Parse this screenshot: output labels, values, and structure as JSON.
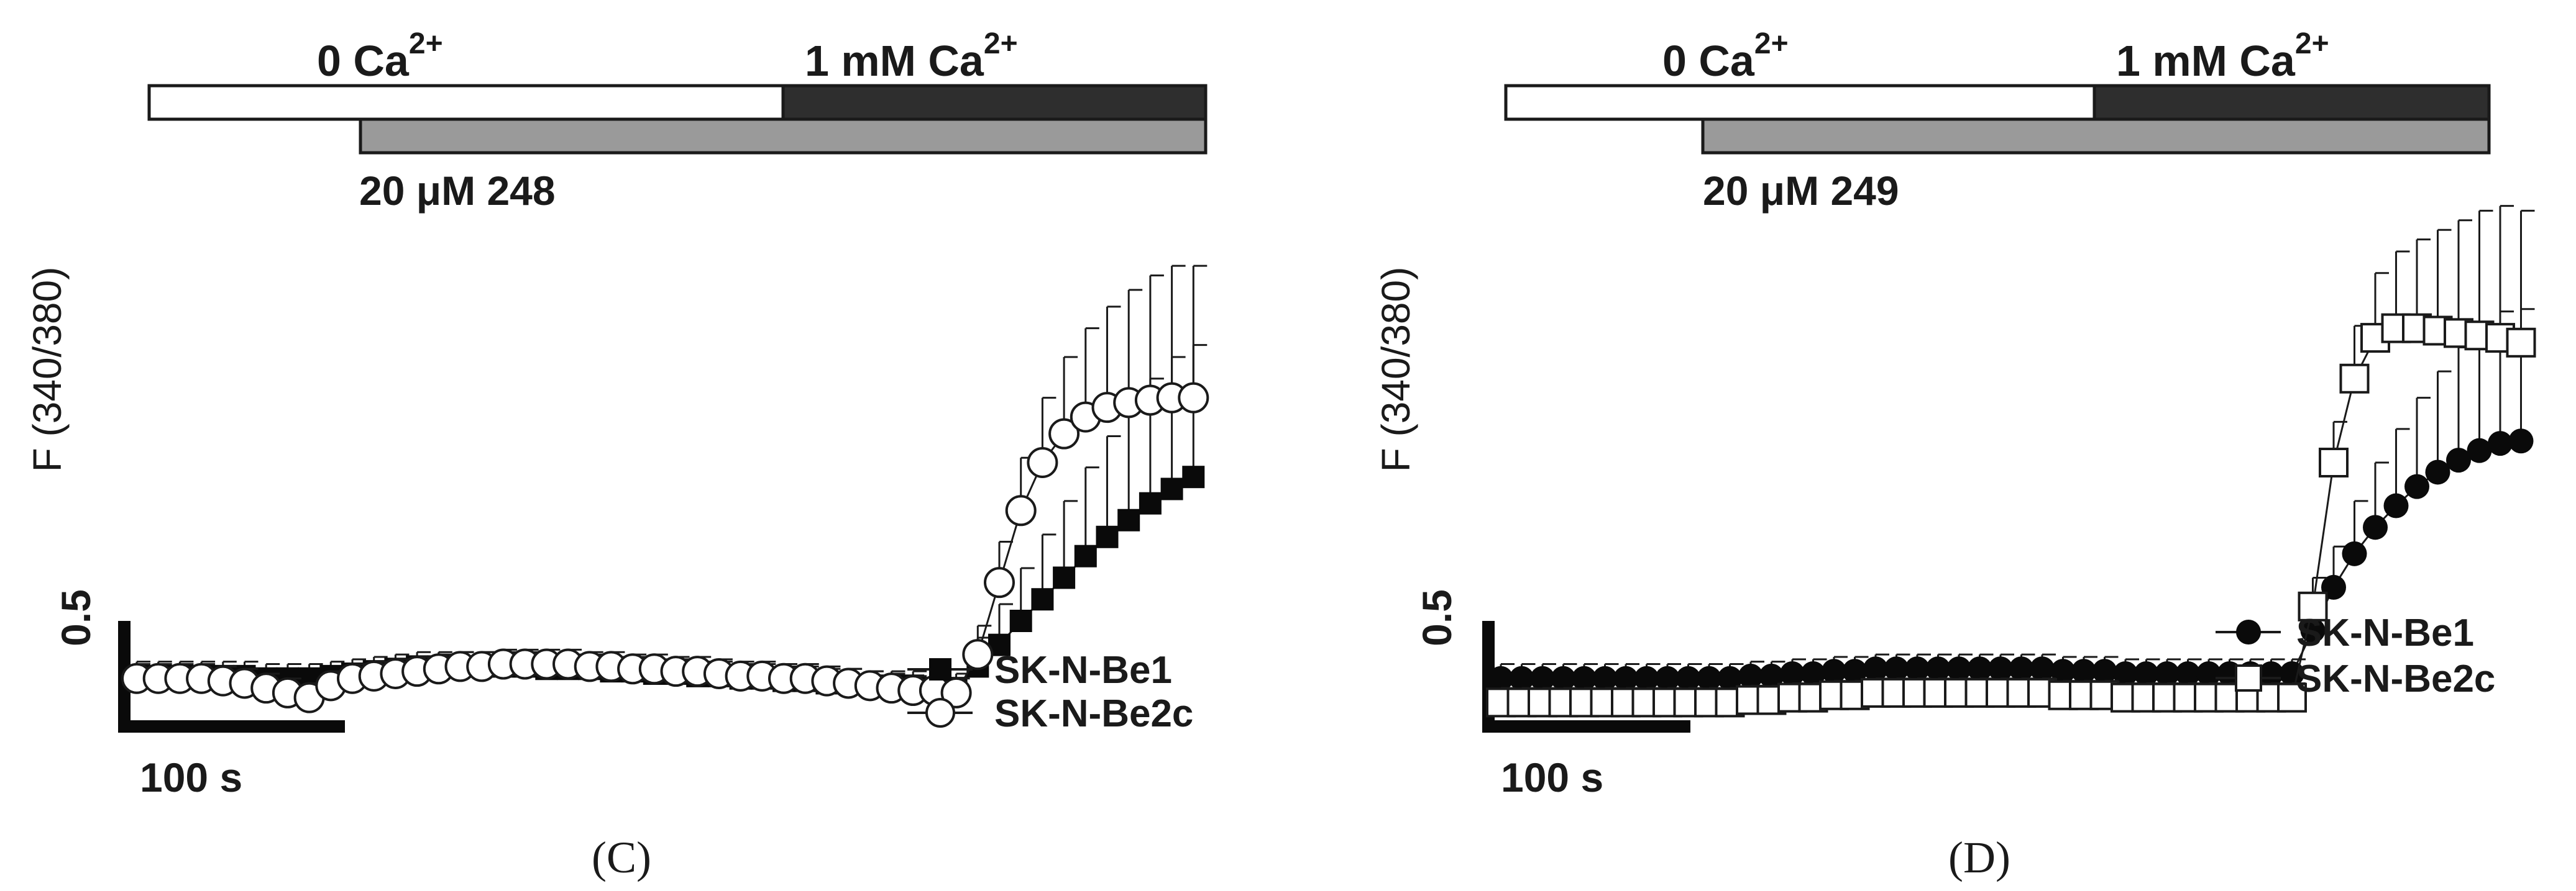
{
  "chart_data": [
    {
      "type": "line",
      "panel_label": "(C)",
      "protocol": {
        "condition1": "0 Ca",
        "condition1_sup": "2+",
        "condition2": "1 mM Ca",
        "condition2_sup": "2+",
        "drug": "20 μM 248"
      },
      "ylabel": "F (340/380)",
      "scale_bar": {
        "y_label": "0.5",
        "y_value": 0.5,
        "x_label": "100 s",
        "x_value": 100
      },
      "xlim": [
        0,
        800
      ],
      "ylim": [
        0,
        2.2
      ],
      "series": [
        {
          "name": "SK-N-Be1",
          "marker": "filled-square",
          "x": [
            0,
            16,
            32,
            48,
            64,
            80,
            96,
            112,
            128,
            144,
            160,
            176,
            192,
            208,
            224,
            240,
            256,
            272,
            288,
            304,
            320,
            336,
            352,
            368,
            384,
            400,
            416,
            432,
            448,
            464,
            480,
            496,
            512,
            528,
            544,
            560,
            576,
            592,
            608,
            624,
            640,
            656,
            672,
            688,
            704,
            720,
            736,
            752,
            768,
            784
          ],
          "values": [
            0.21,
            0.21,
            0.21,
            0.21,
            0.21,
            0.21,
            0.2,
            0.2,
            0.2,
            0.21,
            0.22,
            0.23,
            0.24,
            0.25,
            0.25,
            0.25,
            0.25,
            0.25,
            0.25,
            0.24,
            0.24,
            0.24,
            0.23,
            0.23,
            0.22,
            0.22,
            0.21,
            0.21,
            0.2,
            0.2,
            0.19,
            0.19,
            0.18,
            0.18,
            0.17,
            0.17,
            0.17,
            0.16,
            0.16,
            0.25,
            0.34,
            0.44,
            0.53,
            0.62,
            0.71,
            0.79,
            0.86,
            0.93,
            0.99,
            1.04
          ]
        },
        {
          "name": "SK-N-Be2c",
          "marker": "open-circle",
          "x": [
            0,
            16,
            32,
            48,
            64,
            80,
            96,
            112,
            128,
            144,
            160,
            176,
            192,
            208,
            224,
            240,
            256,
            272,
            288,
            304,
            320,
            336,
            352,
            368,
            384,
            400,
            416,
            432,
            448,
            464,
            480,
            496,
            512,
            528,
            544,
            560,
            576,
            592,
            608,
            624,
            640,
            656,
            672,
            688,
            704,
            720,
            736,
            752,
            768,
            784
          ],
          "values": [
            0.2,
            0.2,
            0.2,
            0.2,
            0.19,
            0.18,
            0.16,
            0.14,
            0.12,
            0.17,
            0.2,
            0.21,
            0.22,
            0.23,
            0.24,
            0.25,
            0.25,
            0.26,
            0.26,
            0.26,
            0.26,
            0.25,
            0.25,
            0.24,
            0.24,
            0.23,
            0.23,
            0.22,
            0.21,
            0.21,
            0.2,
            0.2,
            0.19,
            0.18,
            0.17,
            0.16,
            0.15,
            0.15,
            0.14,
            0.3,
            0.6,
            0.9,
            1.1,
            1.22,
            1.29,
            1.33,
            1.35,
            1.36,
            1.37,
            1.37
          ]
        }
      ]
    },
    {
      "type": "line",
      "panel_label": "(D)",
      "protocol": {
        "condition1": "0 Ca",
        "condition1_sup": "2+",
        "condition2": "1 mM Ca",
        "condition2_sup": "2+",
        "drug": "20 μM 249"
      },
      "ylabel": "F (340/380)",
      "scale_bar": {
        "y_label": "0.5",
        "y_value": 0.5,
        "x_label": "100 s",
        "x_value": 100
      },
      "xlim": [
        0,
        800
      ],
      "ylim": [
        0,
        2.2
      ],
      "series": [
        {
          "name": "SK-N-Be1",
          "marker": "filled-circle",
          "x": [
            0,
            16,
            32,
            48,
            64,
            80,
            96,
            112,
            128,
            144,
            160,
            176,
            192,
            208,
            224,
            240,
            256,
            272,
            288,
            304,
            320,
            336,
            352,
            368,
            384,
            400,
            416,
            432,
            448,
            464,
            480,
            496,
            512,
            528,
            544,
            560,
            576,
            592,
            608,
            624,
            640,
            656,
            672,
            688,
            704,
            720,
            736,
            752,
            768,
            784
          ],
          "values": [
            0.2,
            0.2,
            0.2,
            0.2,
            0.2,
            0.2,
            0.2,
            0.2,
            0.2,
            0.2,
            0.2,
            0.2,
            0.21,
            0.21,
            0.22,
            0.22,
            0.23,
            0.23,
            0.24,
            0.24,
            0.24,
            0.24,
            0.24,
            0.24,
            0.24,
            0.24,
            0.24,
            0.23,
            0.23,
            0.23,
            0.22,
            0.22,
            0.22,
            0.22,
            0.22,
            0.22,
            0.22,
            0.22,
            0.22,
            0.4,
            0.58,
            0.72,
            0.83,
            0.92,
            1.0,
            1.06,
            1.11,
            1.15,
            1.18,
            1.19
          ]
        },
        {
          "name": "SK-N-Be2c",
          "marker": "open-square",
          "x": [
            0,
            16,
            32,
            48,
            64,
            80,
            96,
            112,
            128,
            144,
            160,
            176,
            192,
            208,
            224,
            240,
            256,
            272,
            288,
            304,
            320,
            336,
            352,
            368,
            384,
            400,
            416,
            432,
            448,
            464,
            480,
            496,
            512,
            528,
            544,
            560,
            576,
            592,
            608,
            624,
            640,
            656,
            672,
            688,
            704,
            720,
            736,
            752,
            768,
            784
          ],
          "values": [
            0.1,
            0.1,
            0.1,
            0.1,
            0.1,
            0.1,
            0.1,
            0.1,
            0.1,
            0.1,
            0.1,
            0.1,
            0.11,
            0.11,
            0.12,
            0.12,
            0.13,
            0.13,
            0.14,
            0.14,
            0.14,
            0.14,
            0.14,
            0.14,
            0.14,
            0.14,
            0.14,
            0.13,
            0.13,
            0.13,
            0.12,
            0.12,
            0.12,
            0.12,
            0.12,
            0.12,
            0.12,
            0.12,
            0.12,
            0.5,
            1.1,
            1.45,
            1.62,
            1.66,
            1.66,
            1.65,
            1.64,
            1.63,
            1.62,
            1.6
          ]
        }
      ]
    }
  ]
}
